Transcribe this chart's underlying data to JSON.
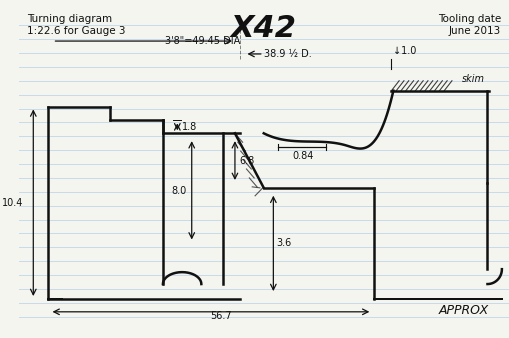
{
  "title_left": "Turning diagram\n1:22.6 for Gauge 3",
  "title_center": "X42",
  "title_right": "Tooling date\nJune 2013",
  "bottom_right": "APPROX",
  "dim_labels": {
    "dia": "3'8\"=49.45 DIA",
    "half_dia": "38.9 ½ D.",
    "depth1": "1.0",
    "rim_height": "1.8",
    "flat": "0.84",
    "height_total": "10.4",
    "inner_depth1": "8.0",
    "inner_depth2": "6.8",
    "step_height": "3.6",
    "width": "56.7",
    "skim": "skim"
  },
  "bg_color": "#f5f5f0",
  "line_color": "#111111",
  "dim_color": "#111111",
  "ruled_line_color": "#aac8e8",
  "ruled_line_alpha": 0.6,
  "fig_width": 5.1,
  "fig_height": 3.38
}
